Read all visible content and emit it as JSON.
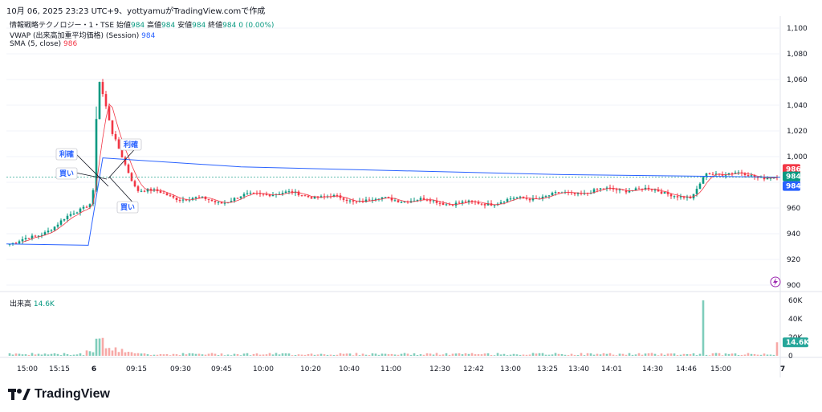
{
  "caption": "10月 06, 2025 23:23 UTC+9、yottyamuがTradingView.comで作成",
  "legend": {
    "symbol_line": "情報戦略テクノロジー・1・TSE",
    "ohlc_items": [
      {
        "label": "始値",
        "value": "984"
      },
      {
        "label": "高値",
        "value": "984"
      },
      {
        "label": "安値",
        "value": "984"
      },
      {
        "label": "終値",
        "value": "984"
      }
    ],
    "change": "0 (0.00%)",
    "vwap_label": "VWAP (出来高加重平均価格) (Session)",
    "vwap_value": "984",
    "sma_label": "SMA (5, close)",
    "sma_value": "986",
    "volume_label": "出来高",
    "volume_value": "14.6K"
  },
  "colors": {
    "up": "#089981",
    "down": "#f23645",
    "vwap": "#2962ff",
    "sma": "#f23645",
    "vol_up": "#7fcdbb",
    "vol_down": "#f7a9a7",
    "grid": "#f0f3fa"
  },
  "price_axis": {
    "ticks": [
      "1,100",
      "1,080",
      "1,060",
      "1,040",
      "1,020",
      "1,000",
      "980",
      "960",
      "940",
      "920",
      "900"
    ],
    "badges": [
      {
        "text": "986",
        "value": 986,
        "color": "#f23645"
      },
      {
        "text": "984",
        "value": 984,
        "color": "#089981"
      },
      {
        "text": "984",
        "value": 984,
        "color": "#2962ff"
      }
    ]
  },
  "volume_axis": {
    "ticks": [
      "60K",
      "40K",
      "20K",
      "0"
    ],
    "badge": "14.6K"
  },
  "time_axis": {
    "labels": [
      "15:00",
      "15:15",
      "6",
      "09:15",
      "09:30",
      "09:45",
      "10:00",
      "10:20",
      "10:40",
      "11:00",
      "12:30",
      "12:42",
      "13:00",
      "13:25",
      "13:40",
      "14:01",
      "14:30",
      "14:46",
      "15:00",
      "7"
    ]
  },
  "annotations": [
    "利確",
    "買い",
    "利確",
    "買い"
  ],
  "branding": "TradingView",
  "chart_data": {
    "type": "candlestick",
    "ylim": [
      895,
      1105
    ],
    "volume_ylim": [
      0,
      65000
    ],
    "price_series_key_points": [
      {
        "t": "15:00",
        "price": 932
      },
      {
        "t": "15:15",
        "price": 946
      },
      {
        "t": "6",
        "price": 966
      },
      {
        "t": "6 high",
        "price": 1039
      },
      {
        "t": "09:15",
        "price": 975
      },
      {
        "t": "09:30",
        "price": 968
      },
      {
        "t": "09:45",
        "price": 965
      },
      {
        "t": "10:00",
        "price": 972
      },
      {
        "t": "10:20",
        "price": 970
      },
      {
        "t": "10:40",
        "price": 966
      },
      {
        "t": "11:00",
        "price": 967
      },
      {
        "t": "12:30",
        "price": 965
      },
      {
        "t": "12:42",
        "price": 963
      },
      {
        "t": "13:00",
        "price": 966
      },
      {
        "t": "13:25",
        "price": 970
      },
      {
        "t": "13:40",
        "price": 973
      },
      {
        "t": "14:01",
        "price": 975
      },
      {
        "t": "14:30",
        "price": 972
      },
      {
        "t": "14:46",
        "price": 966
      },
      {
        "t": "15:00",
        "price": 988
      },
      {
        "t": "7",
        "price": 984
      }
    ],
    "vwap_key_points": [
      932,
      931,
      999,
      992,
      986,
      984
    ],
    "volume_spike": 60000
  }
}
